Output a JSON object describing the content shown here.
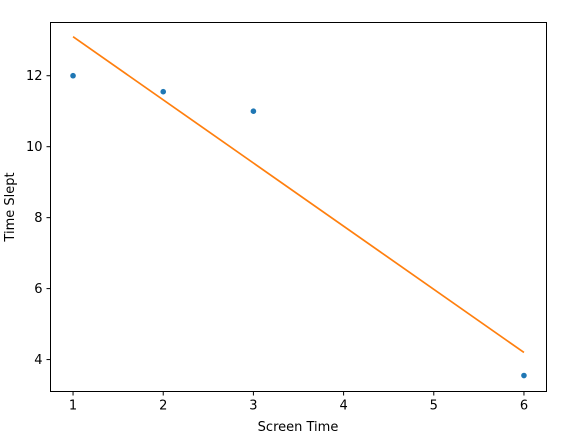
{
  "chart_data": {
    "type": "scatter",
    "title": "",
    "xlabel": "Screen Time",
    "ylabel": "Time Slept",
    "xlim": [
      0.75,
      6.25
    ],
    "ylim": [
      3.1,
      13.5
    ],
    "xticks": [
      "1",
      "2",
      "3",
      "4",
      "5",
      "6"
    ],
    "yticks": [
      "4",
      "6",
      "8",
      "10",
      "12"
    ],
    "grid": false,
    "legend": "none",
    "points": {
      "x": [
        1,
        2,
        3,
        6
      ],
      "y": [
        12.0,
        11.55,
        11.0,
        3.55
      ],
      "color": "#1f77b4"
    },
    "fit_line": {
      "x": [
        1,
        6
      ],
      "y": [
        13.1,
        4.2
      ],
      "color": "#ff7f0e"
    }
  }
}
